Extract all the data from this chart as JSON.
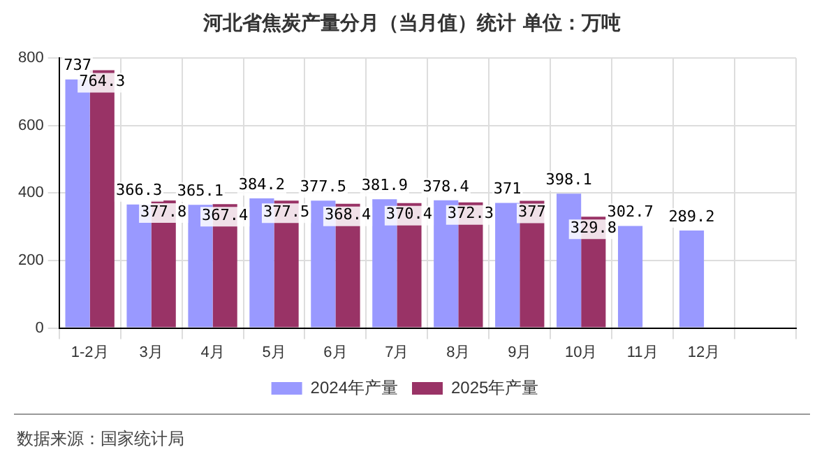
{
  "chart_data": {
    "type": "bar",
    "title": "河北省焦炭产量分月（当月值）统计  单位：万吨",
    "categories": [
      "1-2月",
      "3月",
      "4月",
      "5月",
      "6月",
      "7月",
      "8月",
      "9月",
      "10月",
      "11月",
      "12月",
      null
    ],
    "series": [
      {
        "name": "2024年产量",
        "color": "#9999ff",
        "values": [
          737,
          366.3,
          365.1,
          384.2,
          377.5,
          381.9,
          378.4,
          371,
          398.1,
          302.7,
          289.2,
          null
        ]
      },
      {
        "name": "2025年产量",
        "color": "#993366",
        "values": [
          764.3,
          377.8,
          367.4,
          377.5,
          368.4,
          370.4,
          372.3,
          377,
          329.8,
          null,
          null,
          null
        ]
      }
    ],
    "ylim": [
      0,
      800
    ],
    "yticks": [
      0,
      200,
      400,
      600,
      800
    ],
    "grid": true,
    "legend": "bottom",
    "data_labels": true,
    "annotations": [
      "数据来源：国家统计局"
    ]
  }
}
